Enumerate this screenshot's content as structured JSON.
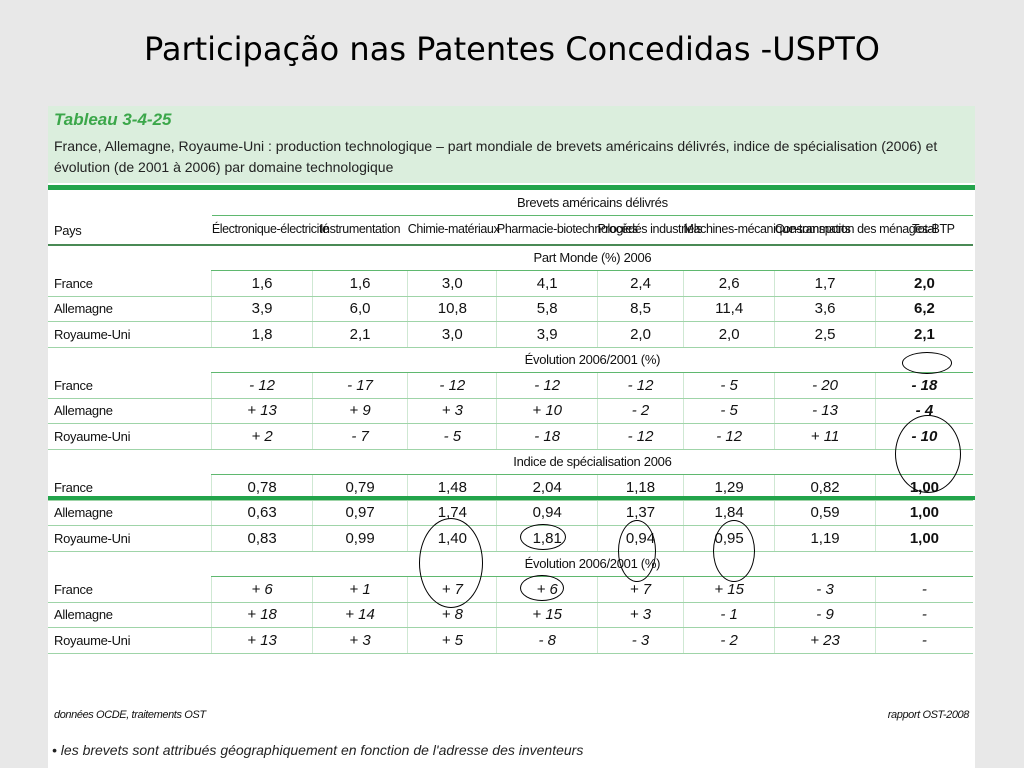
{
  "slide_title": "Participação nas Patentes Concedidas -USPTO",
  "table_id": "Tableau 3-4-25",
  "caption": "France, Allemagne, Royaume-Uni : production technologique – part mondiale de brevets américains délivrés, indice de spécialisation (2006) et évolution (de 2001 à 2006) par domaine technologique",
  "group_header": "Brevets américains délivrés",
  "row_header": "Pays",
  "columns": [
    "Électronique-électricité",
    "Instrumentation",
    "Chimie-matériaux",
    "Pharmacie-biotechnologies",
    "Procédés industriels",
    "Machines-mécanique-transports",
    "Consommation des ménages-BTP",
    "Total"
  ],
  "sections": [
    {
      "title": "Part Monde  (%) 2006",
      "rows": [
        {
          "country": "France",
          "values": [
            "1,6",
            "1,6",
            "3,0",
            "4,1",
            "2,4",
            "2,6",
            "1,7",
            "2,0"
          ]
        },
        {
          "country": "Allemagne",
          "values": [
            "3,9",
            "6,0",
            "10,8",
            "5,8",
            "8,5",
            "11,4",
            "3,6",
            "6,2"
          ]
        },
        {
          "country": "Royaume-Uni",
          "values": [
            "1,8",
            "2,1",
            "3,0",
            "3,9",
            "2,0",
            "2,0",
            "2,5",
            "2,1"
          ]
        }
      ]
    },
    {
      "title": "Évolution 2006/2001 (%)",
      "rows": [
        {
          "country": "France",
          "values": [
            "- 12",
            "- 17",
            "- 12",
            "- 12",
            "- 12",
            "- 5",
            "- 20",
            "- 18"
          ]
        },
        {
          "country": "Allemagne",
          "values": [
            "+ 13",
            "+ 9",
            "+ 3",
            "+ 10",
            "- 2",
            "- 5",
            "- 13",
            "- 4"
          ]
        },
        {
          "country": "Royaume-Uni",
          "values": [
            "+ 2",
            "- 7",
            "- 5",
            "- 18",
            "- 12",
            "- 12",
            "+ 11",
            "- 10"
          ]
        }
      ]
    },
    {
      "title": "Indice de spécialisation 2006",
      "rows": [
        {
          "country": "France",
          "values": [
            "0,78",
            "0,79",
            "1,48",
            "2,04",
            "1,18",
            "1,29",
            "0,82",
            "1,00"
          ]
        },
        {
          "country": "Allemagne",
          "values": [
            "0,63",
            "0,97",
            "1,74",
            "0,94",
            "1,37",
            "1,84",
            "0,59",
            "1,00"
          ]
        },
        {
          "country": "Royaume-Uni",
          "values": [
            "0,83",
            "0,99",
            "1,40",
            "1,81",
            "0,94",
            "0,95",
            "1,19",
            "1,00"
          ]
        }
      ]
    },
    {
      "title": "Évolution 2006/2001 (%)",
      "rows": [
        {
          "country": "France",
          "values": [
            "+ 6",
            "+ 1",
            "+ 7",
            "+ 6",
            "+ 7",
            "+ 15",
            "- 3",
            "-"
          ]
        },
        {
          "country": "Allemagne",
          "values": [
            "+ 18",
            "+ 14",
            "+ 8",
            "+ 15",
            "+ 3",
            "- 1",
            "- 9",
            "-"
          ]
        },
        {
          "country": "Royaume-Uni",
          "values": [
            "+ 13",
            "+ 3",
            "+ 5",
            "- 8",
            "- 3",
            "- 2",
            "+ 23",
            "-"
          ]
        }
      ]
    }
  ],
  "source_left": "données OCDE, traitements OST",
  "source_right": "rapport OST-2008",
  "note": "• les brevets sont attribués géographiquement en fonction de l'adresse des inventeurs",
  "colors": {
    "header_bg": "#dbeedd",
    "accent_green": "#22a44b",
    "table_id_green": "#3ba74a",
    "slide_bg": "#e8e8e8"
  }
}
